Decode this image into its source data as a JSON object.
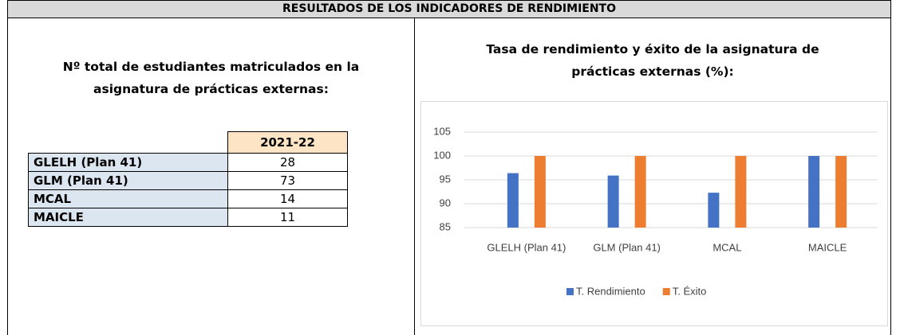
{
  "header": {
    "title": "RESULTADOS DE LOS INDICADORES DE RENDIMIENTO"
  },
  "left": {
    "title_lines": [
      "Nº total de estudiantes matriculados en la",
      "asignatura de prácticas externas:"
    ],
    "table": {
      "header": "2021-22",
      "rows": [
        [
          "GLELH (Plan 41)",
          28
        ],
        [
          "GLM (Plan 41)",
          73
        ],
        [
          "MCAL",
          14
        ],
        [
          "MAICLE",
          11
        ]
      ]
    }
  },
  "chart_data": {
    "type": "bar",
    "title_lines": [
      "Tasa de rendimiento y éxito de la asignatura de",
      "prácticas externas (%):"
    ],
    "categories": [
      "GLELH (Plan 41)",
      "GLM (Plan 41)",
      "MCAL",
      "MAICLE"
    ],
    "series": [
      {
        "name": "T. Rendimiento",
        "color": "#4472c4",
        "values": [
          96.4,
          95.9,
          92.3,
          100
        ]
      },
      {
        "name": "T. Éxito",
        "color": "#ed7d31",
        "values": [
          100,
          100,
          100,
          100
        ]
      }
    ],
    "ylim": [
      85,
      105
    ],
    "yticks": [
      85,
      90,
      95,
      100,
      105
    ],
    "grid": true,
    "legend": "bottom"
  }
}
